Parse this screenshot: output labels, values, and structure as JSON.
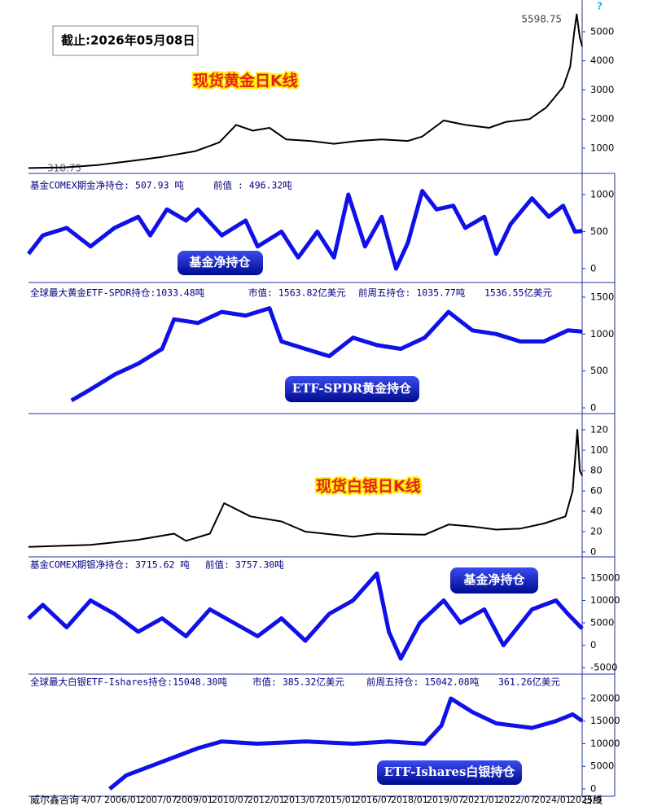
{
  "help": "?",
  "source": "威尔鑫咨询",
  "period": "日线",
  "x_axis_labels": [
    "4/07",
    "2006/01",
    "2007/07",
    "2009/01",
    "2010/07",
    "2012/01",
    "2013/07",
    "2015/01",
    "2016/07",
    "2018/01",
    "2019/07",
    "2021/01",
    "2022/07",
    "2024/01",
    "2025/0"
  ],
  "chart_data": [
    {
      "type": "line",
      "title": "现货黄金日K线",
      "date_box": "截止:2026年05月08日",
      "annotations": [
        "5598.75",
        "318.75"
      ],
      "color": "#000000",
      "x": [
        2002.4,
        2003.9,
        2005.3,
        2006.7,
        2008.0,
        2009.4,
        2010.4,
        2011.1,
        2011.8,
        2012.5,
        2013.2,
        2014.2,
        2015.2,
        2016.2,
        2017.2,
        2018.3,
        2018.9,
        2019.8,
        2020.7,
        2021.7,
        2022.4,
        2023.4,
        2024.1,
        2024.8,
        2025.1,
        2025.27,
        2025.37,
        2025.5,
        2025.6
      ],
      "values": [
        318.75,
        340,
        420,
        560,
        700,
        900,
        1200,
        1800,
        1600,
        1700,
        1300,
        1250,
        1150,
        1250,
        1300,
        1250,
        1400,
        1950,
        1800,
        1700,
        1900,
        2000,
        2400,
        3100,
        3800,
        5000,
        5598.75,
        4800,
        4500
      ],
      "xlim": [
        2002.4,
        2025.6
      ],
      "ylim": [
        133,
        6090
      ],
      "yticks": [
        1000,
        2000,
        3000,
        4000,
        5000
      ]
    },
    {
      "type": "line",
      "labels": [
        "基金COMEX期金净持仓: 507.93 吨",
        "前值 : 496.32吨"
      ],
      "badge": "基金净持仓",
      "color": "#1010e8",
      "x": [
        2002.4,
        2003,
        2004,
        2005,
        2006,
        2007,
        2007.5,
        2008.2,
        2009,
        2009.5,
        2010.5,
        2011.5,
        2012,
        2013,
        2013.7,
        2014.5,
        2015.2,
        2015.8,
        2016.5,
        2017.2,
        2017.8,
        2018.3,
        2018.9,
        2019.5,
        2020.2,
        2020.7,
        2021.5,
        2022,
        2022.6,
        2023.5,
        2024.2,
        2024.8,
        2025.3,
        2025.6
      ],
      "values": [
        200,
        450,
        550,
        300,
        550,
        700,
        450,
        800,
        650,
        800,
        450,
        650,
        300,
        500,
        150,
        500,
        150,
        1000,
        300,
        700,
        0,
        350,
        1050,
        800,
        850,
        550,
        700,
        200,
        600,
        950,
        700,
        850,
        500,
        507.93
      ],
      "xlim": [
        2002.4,
        2025.6
      ],
      "ylim": [
        -187,
        1286
      ],
      "yticks": [
        0,
        500,
        1000
      ]
    },
    {
      "type": "line",
      "labels": [
        "全球最大黄金ETF-SPDR持仓:1033.48吨",
        "市值: 1563.82亿美元",
        "前周五持仓: 1035.77吨",
        "1536.55亿美元"
      ],
      "badge": "ETF-SPDR黄金持仓",
      "color": "#1010e8",
      "x": [
        2004.2,
        2005,
        2006,
        2007,
        2008,
        2008.5,
        2009.5,
        2010.5,
        2011.5,
        2012.5,
        2013,
        2014,
        2015,
        2016,
        2017,
        2018,
        2019,
        2020,
        2021,
        2022,
        2023,
        2024,
        2025,
        2025.6
      ],
      "values": [
        100,
        250,
        450,
        600,
        800,
        1200,
        1150,
        1300,
        1250,
        1350,
        900,
        800,
        700,
        950,
        850,
        800,
        950,
        1300,
        1050,
        1000,
        900,
        900,
        1050,
        1033.48
      ],
      "xlim": [
        2002.4,
        2025.6
      ],
      "ylim": [
        -77,
        1698
      ],
      "yticks": [
        0,
        500,
        1000,
        1500
      ]
    },
    {
      "type": "line",
      "title": "现货白银日K线",
      "color": "#000000",
      "x": [
        2002.4,
        2005,
        2007,
        2008.5,
        2009,
        2010,
        2010.6,
        2011.7,
        2013,
        2014,
        2016,
        2017,
        2019,
        2020,
        2021,
        2022,
        2023,
        2024,
        2024.9,
        2025.2,
        2025.4,
        2025.5,
        2025.6
      ],
      "values": [
        5,
        7,
        12,
        18,
        11,
        18,
        48,
        35,
        30,
        20,
        15,
        18,
        17,
        27,
        25,
        22,
        23,
        28,
        35,
        60,
        120,
        80,
        75
      ],
      "xlim": [
        2002.4,
        2025.6
      ],
      "ylim": [
        -4.8,
        136
      ],
      "yticks": [
        0,
        20,
        40,
        60,
        80,
        100,
        120
      ]
    },
    {
      "type": "line",
      "labels": [
        "基金COMEX期银净持仓: 3715.62 吨",
        "前值: 3757.30吨"
      ],
      "badge": "基金净持仓",
      "color": "#1010e8",
      "x": [
        2002.4,
        2003,
        2004,
        2005,
        2006,
        2007,
        2008,
        2009,
        2010,
        2011,
        2012,
        2013,
        2014,
        2015,
        2016,
        2017,
        2017.5,
        2018,
        2018.8,
        2019.8,
        2020.5,
        2021.5,
        2022.3,
        2023.5,
        2024.5,
        2025,
        2025.6
      ],
      "values": [
        6000,
        9000,
        4000,
        10000,
        7000,
        3000,
        6000,
        2000,
        8000,
        5000,
        2000,
        6000,
        1000,
        7000,
        10000,
        16000,
        3000,
        -3000,
        5000,
        10000,
        5000,
        8000,
        0,
        8000,
        10000,
        7000,
        3715.62
      ],
      "xlim": [
        2002.4,
        2025.6
      ],
      "ylim": [
        -6455,
        19727
      ],
      "yticks": [
        -5000,
        0,
        5000,
        10000,
        15000
      ]
    },
    {
      "type": "line",
      "labels": [
        "全球最大白银ETF-Ishares持仓:15048.30吨",
        "市值: 385.32亿美元",
        "前周五持仓: 15042.08吨",
        "361.26亿美元"
      ],
      "badge": "ETF-Ishares白银持仓",
      "color": "#1010e8",
      "x": [
        2005.8,
        2006.5,
        2007.5,
        2008.5,
        2009.5,
        2010.5,
        2012,
        2014,
        2016,
        2017.5,
        2019,
        2019.7,
        2020.1,
        2021,
        2022,
        2023.5,
        2024.5,
        2025.2,
        2025.6
      ],
      "values": [
        0,
        3000,
        5000,
        7000,
        9000,
        10500,
        10000,
        10500,
        10000,
        10500,
        10000,
        14000,
        20000,
        17000,
        14500,
        13500,
        15000,
        16500,
        15048.3
      ],
      "xlim": [
        2002.4,
        2025.6
      ],
      "ylim": [
        -1622,
        25405
      ],
      "yticks": [
        0,
        5000,
        10000,
        15000,
        20000
      ]
    }
  ]
}
